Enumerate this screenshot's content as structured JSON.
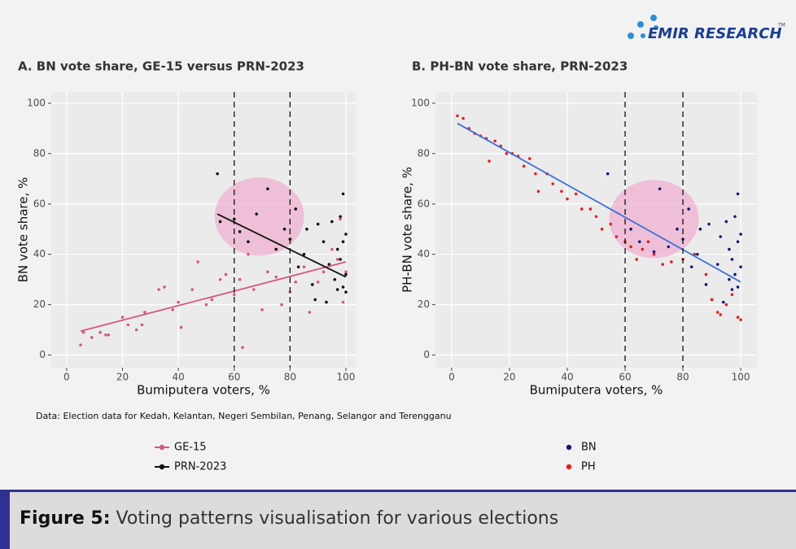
{
  "logo": {
    "name": "EMIR RESEARCH",
    "tm": "TM"
  },
  "chart_data": [
    {
      "type": "scatter",
      "title": "A. BN vote share, GE-15 versus PRN-2023",
      "xlabel": "Bumiputera voters, %",
      "ylabel": "BN vote share, %",
      "xlim": [
        -5.5,
        103.5
      ],
      "ylim": [
        -5,
        104.5
      ],
      "xticks": [
        0,
        20,
        40,
        60,
        80,
        100
      ],
      "yticks": [
        0,
        20,
        40,
        60,
        80,
        100
      ],
      "grid": true,
      "vlines": [
        60,
        80
      ],
      "highlight": {
        "x": 69,
        "y": 55,
        "rx": 16,
        "ry": 15.5,
        "color": "#f0a8cc"
      },
      "series": [
        {
          "name": "GE-15",
          "color": "#d6587a",
          "x": [
            5,
            6,
            9,
            12,
            14,
            15,
            20,
            22,
            25,
            27,
            28,
            33,
            35,
            38,
            40,
            41,
            45,
            47,
            50,
            52,
            55,
            57,
            60,
            62,
            63,
            65,
            67,
            70,
            72,
            75,
            77,
            80,
            82,
            85,
            87,
            90,
            92,
            95,
            97,
            98,
            99,
            100
          ],
          "values": [
            4,
            9,
            7,
            9,
            8,
            8,
            15,
            12,
            10,
            12,
            17,
            26,
            27,
            18,
            21,
            11,
            26,
            37,
            20,
            22,
            30,
            32,
            24,
            30,
            3,
            40,
            26,
            18,
            33,
            31,
            20,
            25,
            29,
            35,
            17,
            29,
            33,
            42,
            38,
            54,
            21,
            33
          ],
          "fit": {
            "x": [
              5,
              100
            ],
            "y": [
              9.5,
              37
            ]
          }
        },
        {
          "name": "PRN-2023",
          "color": "#111111",
          "x": [
            54,
            55,
            60,
            62,
            65,
            68,
            72,
            75,
            78,
            80,
            82,
            83,
            85,
            86,
            88,
            89,
            90,
            92,
            93,
            94,
            95,
            96,
            97,
            97,
            98,
            98,
            99,
            99,
            99,
            100,
            100,
            100
          ],
          "values": [
            72,
            53,
            54,
            49,
            45,
            56,
            66,
            42,
            50,
            46,
            58,
            35,
            40,
            50,
            28,
            22,
            52,
            45,
            21,
            36,
            53,
            30,
            42,
            26,
            38,
            55,
            45,
            27,
            64,
            32,
            48,
            25
          ],
          "fit": {
            "x": [
              54,
              100
            ],
            "y": [
              56,
              31
            ]
          }
        }
      ]
    },
    {
      "type": "scatter",
      "title": "B. PH-BN vote share, PRN-2023",
      "xlabel": "Bumiputera voters, %",
      "ylabel": "PH-BN vote share, %",
      "xlim": [
        -5.6,
        105.6
      ],
      "ylim": [
        -5,
        104.5
      ],
      "xticks": [
        0,
        20,
        40,
        60,
        80,
        100
      ],
      "yticks": [
        0,
        20,
        40,
        60,
        80,
        100
      ],
      "grid": true,
      "vlines": [
        60,
        80
      ],
      "highlight": {
        "x": 70,
        "y": 54,
        "rx": 15.5,
        "ry": 15.5,
        "color": "#f0a8cc"
      },
      "fit": {
        "color": "#3b6fd6",
        "x": [
          2,
          100
        ],
        "y": [
          92,
          29
        ]
      },
      "series": [
        {
          "name": "BN",
          "color": "#14197a",
          "x": [
            54,
            62,
            65,
            70,
            72,
            75,
            78,
            80,
            82,
            83,
            85,
            86,
            88,
            89,
            90,
            92,
            93,
            94,
            95,
            96,
            96,
            97,
            97,
            98,
            98,
            99,
            99,
            99,
            100,
            100
          ],
          "values": [
            72,
            50,
            45,
            41,
            66,
            43,
            50,
            46,
            58,
            35,
            40,
            50,
            28,
            52,
            22,
            36,
            47,
            21,
            53,
            30,
            42,
            26,
            38,
            55,
            32,
            45,
            27,
            64,
            35,
            48
          ]
        },
        {
          "name": "PH",
          "color": "#e0201c",
          "x": [
            2,
            4,
            6,
            8,
            10,
            12,
            13,
            15,
            17,
            19,
            21,
            23,
            25,
            27,
            29,
            30,
            33,
            35,
            38,
            40,
            43,
            45,
            48,
            50,
            52,
            55,
            57,
            60,
            62,
            64,
            66,
            68,
            70,
            73,
            76,
            80,
            84,
            88,
            90,
            92,
            93,
            95,
            97,
            99,
            100
          ],
          "values": [
            95,
            94,
            90,
            88,
            87,
            86,
            77,
            85,
            83,
            80,
            80,
            79,
            75,
            78,
            72,
            65,
            72,
            68,
            65,
            62,
            64,
            58,
            58,
            55,
            50,
            52,
            47,
            45,
            43,
            38,
            42,
            45,
            40,
            36,
            37,
            38,
            40,
            32,
            22,
            17,
            16,
            20,
            24,
            15,
            14
          ]
        }
      ]
    }
  ],
  "note": "Data: Election data for Kedah, Kelantan, Negeri Sembilan, Penang, Selangor and Terengganu",
  "caption": {
    "label": "Figure 5:",
    "text": "Voting patterns visualisation for various elections"
  }
}
